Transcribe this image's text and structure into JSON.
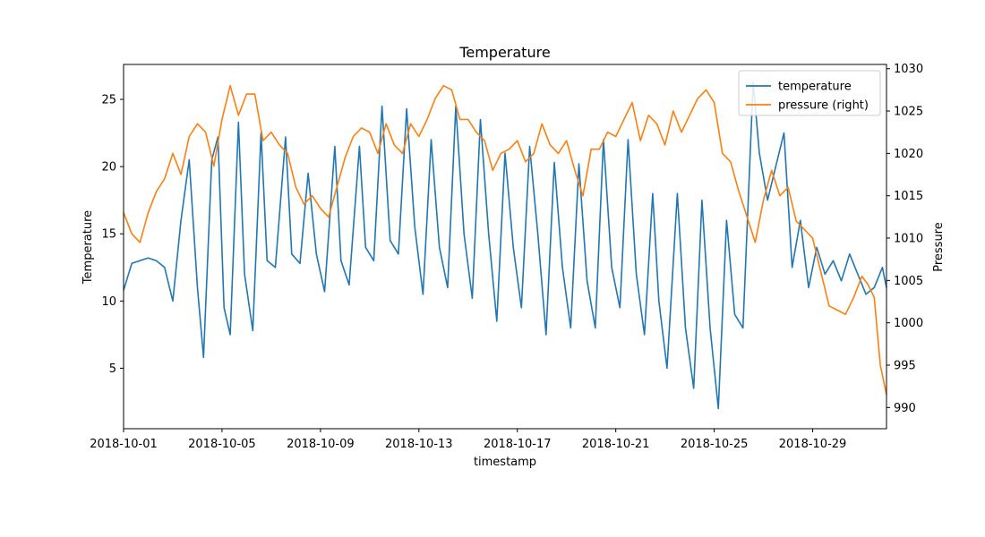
{
  "chart_data": {
    "type": "line",
    "title": "Temperature",
    "xlabel": "timestamp",
    "ylabel": "Temperature",
    "y2label": "Pressure",
    "xlim": [
      "2018-10-01",
      "2018-11-01"
    ],
    "ylim": [
      0.5,
      27.6
    ],
    "y2lim": [
      987.5,
      1030.5
    ],
    "x_ticks": [
      "2018-10-01",
      "2018-10-05",
      "2018-10-09",
      "2018-10-13",
      "2018-10-17",
      "2018-10-21",
      "2018-10-25",
      "2018-10-29"
    ],
    "y_ticks": [
      5,
      10,
      15,
      20,
      25
    ],
    "y2_ticks": [
      990,
      995,
      1000,
      1005,
      1010,
      1015,
      1020,
      1025,
      1030
    ],
    "grid": false,
    "legend_position": "top-right",
    "series": [
      {
        "name": "temperature",
        "axis": "left",
        "color": "#1f77b4",
        "points": [
          [
            "2018-10-01 00:00",
            10.8
          ],
          [
            "2018-10-01 08:00",
            12.8
          ],
          [
            "2018-10-01 16:00",
            13.0
          ],
          [
            "2018-10-02 00:00",
            13.2
          ],
          [
            "2018-10-02 08:00",
            13.0
          ],
          [
            "2018-10-02 16:00",
            12.5
          ],
          [
            "2018-10-03 00:00",
            10.0
          ],
          [
            "2018-10-03 08:00",
            16.0
          ],
          [
            "2018-10-03 16:00",
            20.5
          ],
          [
            "2018-10-04 00:00",
            11.0
          ],
          [
            "2018-10-04 06:00",
            5.8
          ],
          [
            "2018-10-04 14:00",
            20.5
          ],
          [
            "2018-10-04 20:00",
            22.2
          ],
          [
            "2018-10-05 02:00",
            9.5
          ],
          [
            "2018-10-05 08:00",
            7.5
          ],
          [
            "2018-10-05 16:00",
            23.3
          ],
          [
            "2018-10-05 22:00",
            12.0
          ],
          [
            "2018-10-06 06:00",
            7.8
          ],
          [
            "2018-10-06 14:00",
            22.5
          ],
          [
            "2018-10-06 20:00",
            13.0
          ],
          [
            "2018-10-07 04:00",
            12.5
          ],
          [
            "2018-10-07 14:00",
            22.2
          ],
          [
            "2018-10-07 20:00",
            13.5
          ],
          [
            "2018-10-08 04:00",
            12.8
          ],
          [
            "2018-10-08 12:00",
            19.5
          ],
          [
            "2018-10-08 20:00",
            13.5
          ],
          [
            "2018-10-09 04:00",
            10.7
          ],
          [
            "2018-10-09 14:00",
            21.5
          ],
          [
            "2018-10-09 20:00",
            13.0
          ],
          [
            "2018-10-10 04:00",
            11.2
          ],
          [
            "2018-10-10 14:00",
            21.5
          ],
          [
            "2018-10-10 20:00",
            14.0
          ],
          [
            "2018-10-11 04:00",
            13.0
          ],
          [
            "2018-10-11 12:00",
            24.5
          ],
          [
            "2018-10-11 20:00",
            14.5
          ],
          [
            "2018-10-12 04:00",
            13.5
          ],
          [
            "2018-10-12 12:00",
            24.3
          ],
          [
            "2018-10-12 20:00",
            15.5
          ],
          [
            "2018-10-13 04:00",
            10.5
          ],
          [
            "2018-10-13 12:00",
            22.0
          ],
          [
            "2018-10-13 20:00",
            14.0
          ],
          [
            "2018-10-14 04:00",
            11.0
          ],
          [
            "2018-10-14 12:00",
            24.5
          ],
          [
            "2018-10-14 20:00",
            15.0
          ],
          [
            "2018-10-15 04:00",
            10.2
          ],
          [
            "2018-10-15 12:00",
            23.5
          ],
          [
            "2018-10-15 20:00",
            15.0
          ],
          [
            "2018-10-16 04:00",
            8.5
          ],
          [
            "2018-10-16 12:00",
            21.0
          ],
          [
            "2018-10-16 20:00",
            14.0
          ],
          [
            "2018-10-17 04:00",
            9.5
          ],
          [
            "2018-10-17 12:00",
            21.5
          ],
          [
            "2018-10-17 20:00",
            15.0
          ],
          [
            "2018-10-18 04:00",
            7.5
          ],
          [
            "2018-10-18 12:00",
            20.3
          ],
          [
            "2018-10-18 20:00",
            12.5
          ],
          [
            "2018-10-19 04:00",
            8.0
          ],
          [
            "2018-10-19 12:00",
            20.2
          ],
          [
            "2018-10-19 20:00",
            11.5
          ],
          [
            "2018-10-20 04:00",
            8.0
          ],
          [
            "2018-10-20 12:00",
            22.0
          ],
          [
            "2018-10-20 20:00",
            12.5
          ],
          [
            "2018-10-21 04:00",
            9.5
          ],
          [
            "2018-10-21 12:00",
            22.0
          ],
          [
            "2018-10-21 20:00",
            12.0
          ],
          [
            "2018-10-22 04:00",
            7.5
          ],
          [
            "2018-10-22 12:00",
            18.0
          ],
          [
            "2018-10-22 18:00",
            10.0
          ],
          [
            "2018-10-23 02:00",
            5.0
          ],
          [
            "2018-10-23 12:00",
            18.0
          ],
          [
            "2018-10-23 20:00",
            8.0
          ],
          [
            "2018-10-24 04:00",
            3.5
          ],
          [
            "2018-10-24 12:00",
            17.5
          ],
          [
            "2018-10-24 20:00",
            8.0
          ],
          [
            "2018-10-25 04:00",
            2.0
          ],
          [
            "2018-10-25 12:00",
            16.0
          ],
          [
            "2018-10-25 20:00",
            9.0
          ],
          [
            "2018-10-26 04:00",
            8.0
          ],
          [
            "2018-10-26 14:00",
            26.3
          ],
          [
            "2018-10-26 20:00",
            21.0
          ],
          [
            "2018-10-27 04:00",
            17.5
          ],
          [
            "2018-10-27 12:00",
            20.0
          ],
          [
            "2018-10-27 20:00",
            22.5
          ],
          [
            "2018-10-28 04:00",
            12.5
          ],
          [
            "2018-10-28 12:00",
            16.0
          ],
          [
            "2018-10-28 20:00",
            11.0
          ],
          [
            "2018-10-29 04:00",
            14.0
          ],
          [
            "2018-10-29 12:00",
            12.0
          ],
          [
            "2018-10-29 20:00",
            13.0
          ],
          [
            "2018-10-30 04:00",
            11.5
          ],
          [
            "2018-10-30 12:00",
            13.5
          ],
          [
            "2018-10-30 20:00",
            12.0
          ],
          [
            "2018-10-31 04:00",
            10.5
          ],
          [
            "2018-10-31 12:00",
            11.0
          ],
          [
            "2018-10-31 20:00",
            12.5
          ],
          [
            "2018-11-01 00:00",
            11.0
          ]
        ]
      },
      {
        "name": "pressure (right)",
        "axis": "right",
        "color": "#ff7f0e",
        "points": [
          [
            "2018-10-01 00:00",
            1013.0
          ],
          [
            "2018-10-01 08:00",
            1010.5
          ],
          [
            "2018-10-01 16:00",
            1009.5
          ],
          [
            "2018-10-02 00:00",
            1013.0
          ],
          [
            "2018-10-02 08:00",
            1015.5
          ],
          [
            "2018-10-02 16:00",
            1017.0
          ],
          [
            "2018-10-03 00:00",
            1020.0
          ],
          [
            "2018-10-03 08:00",
            1017.5
          ],
          [
            "2018-10-03 16:00",
            1022.0
          ],
          [
            "2018-10-04 00:00",
            1023.5
          ],
          [
            "2018-10-04 08:00",
            1022.5
          ],
          [
            "2018-10-04 16:00",
            1018.5
          ],
          [
            "2018-10-05 00:00",
            1024.0
          ],
          [
            "2018-10-05 08:00",
            1028.0
          ],
          [
            "2018-10-05 16:00",
            1024.5
          ],
          [
            "2018-10-06 00:00",
            1027.0
          ],
          [
            "2018-10-06 08:00",
            1027.0
          ],
          [
            "2018-10-06 16:00",
            1021.5
          ],
          [
            "2018-10-07 00:00",
            1022.5
          ],
          [
            "2018-10-07 08:00",
            1021.0
          ],
          [
            "2018-10-07 16:00",
            1020.0
          ],
          [
            "2018-10-08 00:00",
            1016.0
          ],
          [
            "2018-10-08 08:00",
            1014.0
          ],
          [
            "2018-10-08 16:00",
            1015.0
          ],
          [
            "2018-10-09 00:00",
            1013.5
          ],
          [
            "2018-10-09 08:00",
            1012.5
          ],
          [
            "2018-10-09 16:00",
            1016.0
          ],
          [
            "2018-10-10 00:00",
            1019.5
          ],
          [
            "2018-10-10 08:00",
            1022.0
          ],
          [
            "2018-10-10 16:00",
            1023.0
          ],
          [
            "2018-10-11 00:00",
            1022.5
          ],
          [
            "2018-10-11 08:00",
            1020.0
          ],
          [
            "2018-10-11 16:00",
            1023.5
          ],
          [
            "2018-10-12 00:00",
            1021.0
          ],
          [
            "2018-10-12 08:00",
            1020.0
          ],
          [
            "2018-10-12 16:00",
            1023.5
          ],
          [
            "2018-10-13 00:00",
            1022.0
          ],
          [
            "2018-10-13 08:00",
            1024.0
          ],
          [
            "2018-10-13 16:00",
            1026.5
          ],
          [
            "2018-10-14 00:00",
            1028.0
          ],
          [
            "2018-10-14 08:00",
            1027.5
          ],
          [
            "2018-10-14 16:00",
            1024.0
          ],
          [
            "2018-10-15 00:00",
            1024.0
          ],
          [
            "2018-10-15 08:00",
            1022.5
          ],
          [
            "2018-10-15 16:00",
            1021.5
          ],
          [
            "2018-10-16 00:00",
            1018.0
          ],
          [
            "2018-10-16 08:00",
            1020.0
          ],
          [
            "2018-10-16 16:00",
            1020.5
          ],
          [
            "2018-10-17 00:00",
            1021.5
          ],
          [
            "2018-10-17 08:00",
            1019.0
          ],
          [
            "2018-10-17 16:00",
            1020.0
          ],
          [
            "2018-10-18 00:00",
            1023.5
          ],
          [
            "2018-10-18 08:00",
            1021.0
          ],
          [
            "2018-10-18 16:00",
            1020.0
          ],
          [
            "2018-10-19 00:00",
            1021.5
          ],
          [
            "2018-10-19 08:00",
            1018.0
          ],
          [
            "2018-10-19 16:00",
            1015.0
          ],
          [
            "2018-10-20 00:00",
            1020.5
          ],
          [
            "2018-10-20 08:00",
            1020.5
          ],
          [
            "2018-10-20 16:00",
            1022.5
          ],
          [
            "2018-10-21 00:00",
            1022.0
          ],
          [
            "2018-10-21 08:00",
            1024.0
          ],
          [
            "2018-10-21 16:00",
            1026.0
          ],
          [
            "2018-10-22 00:00",
            1021.5
          ],
          [
            "2018-10-22 08:00",
            1024.5
          ],
          [
            "2018-10-22 16:00",
            1023.5
          ],
          [
            "2018-10-23 00:00",
            1021.0
          ],
          [
            "2018-10-23 08:00",
            1025.0
          ],
          [
            "2018-10-23 16:00",
            1022.5
          ],
          [
            "2018-10-24 00:00",
            1024.5
          ],
          [
            "2018-10-24 08:00",
            1026.5
          ],
          [
            "2018-10-24 16:00",
            1027.5
          ],
          [
            "2018-10-25 00:00",
            1026.0
          ],
          [
            "2018-10-25 08:00",
            1020.0
          ],
          [
            "2018-10-25 16:00",
            1019.0
          ],
          [
            "2018-10-26 00:00",
            1015.5
          ],
          [
            "2018-10-26 08:00",
            1012.5
          ],
          [
            "2018-10-26 16:00",
            1009.5
          ],
          [
            "2018-10-27 00:00",
            1014.5
          ],
          [
            "2018-10-27 08:00",
            1018.0
          ],
          [
            "2018-10-27 16:00",
            1015.0
          ],
          [
            "2018-10-28 00:00",
            1016.0
          ],
          [
            "2018-10-28 08:00",
            1012.0
          ],
          [
            "2018-10-28 16:00",
            1011.0
          ],
          [
            "2018-10-29 00:00",
            1010.0
          ],
          [
            "2018-10-29 08:00",
            1006.0
          ],
          [
            "2018-10-29 16:00",
            1002.0
          ],
          [
            "2018-10-30 00:00",
            1001.5
          ],
          [
            "2018-10-30 08:00",
            1001.0
          ],
          [
            "2018-10-30 16:00",
            1003.0
          ],
          [
            "2018-10-31 00:00",
            1005.5
          ],
          [
            "2018-10-31 06:00",
            1004.5
          ],
          [
            "2018-10-31 12:00",
            1003.0
          ],
          [
            "2018-10-31 18:00",
            995.0
          ],
          [
            "2018-11-01 00:00",
            991.5
          ]
        ]
      }
    ]
  }
}
